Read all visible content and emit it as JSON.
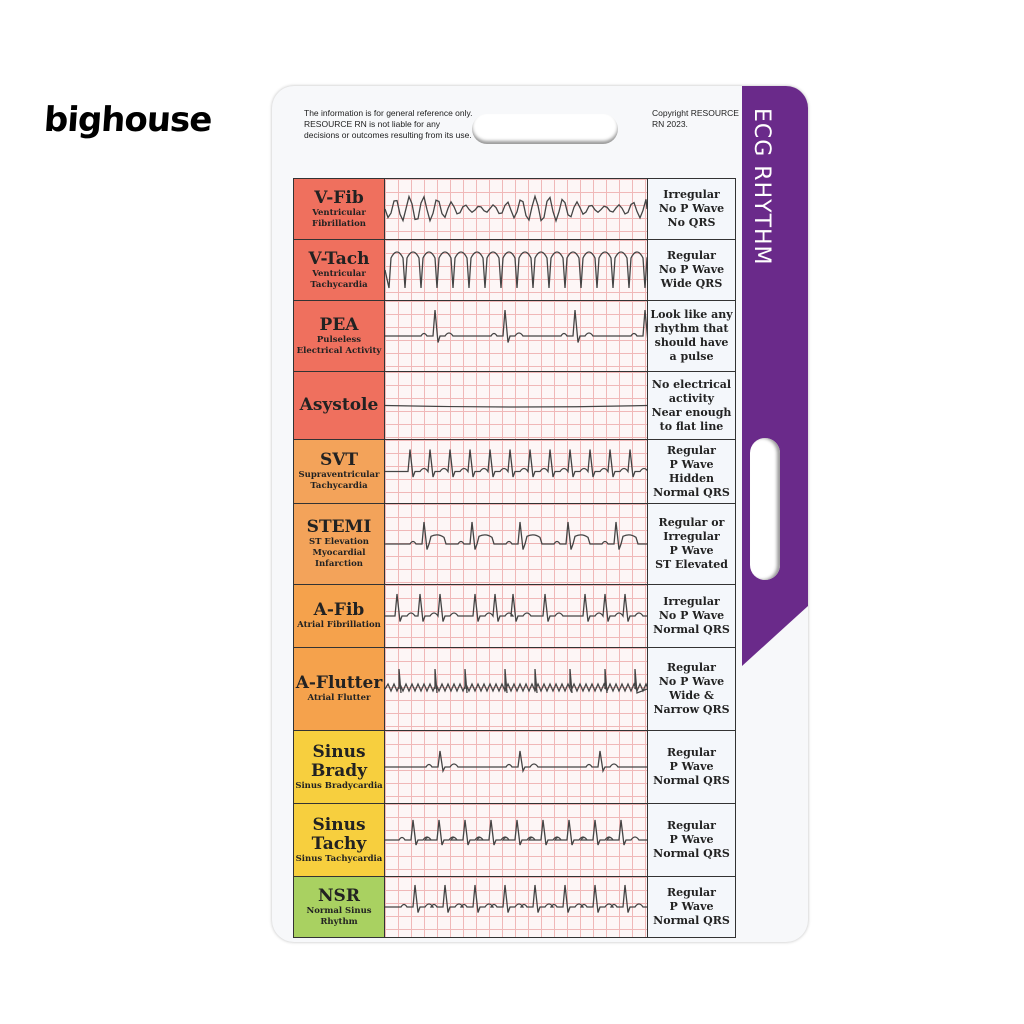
{
  "logo": "bighouse",
  "card": {
    "disclaimer": "The information is for general reference only. RESOURCE RN is not liable for any decisions or outcomes resulting from its use.",
    "copyright": "Copyright RESOURCE RN 2023.",
    "title": "ECG RHYTHM",
    "accent": "#6a2a8a",
    "rows": [
      {
        "name": "V-Fib",
        "sub": "Ventricular Fibrillation",
        "desc": [
          "Irregular",
          "No P Wave",
          "No QRS"
        ],
        "color": "#ef705e"
      },
      {
        "name": "V-Tach",
        "sub": "Ventricular Tachycardia",
        "desc": [
          "Regular",
          "No P Wave",
          "Wide QRS"
        ],
        "color": "#ef705e"
      },
      {
        "name": "PEA",
        "sub": "Pulseless Electrical Activity",
        "desc": [
          "Look like any",
          "rhythm that",
          "should have",
          "a pulse"
        ],
        "color": "#ef705e"
      },
      {
        "name": "Asystole",
        "sub": "",
        "desc": [
          "No electrical",
          "activity",
          "Near enough",
          "to flat line"
        ],
        "color": "#ef705e"
      },
      {
        "name": "SVT",
        "sub": "Supraventricular Tachycardia",
        "desc": [
          "Regular",
          "P Wave",
          "Hidden",
          "Normal QRS"
        ],
        "color": "#f3a35a"
      },
      {
        "name": "STEMI",
        "sub": "ST Elevation Myocardial Infarction",
        "desc": [
          "Regular or",
          "Irregular",
          "P Wave",
          "ST Elevated"
        ],
        "color": "#f3a35a"
      },
      {
        "name": "A-Fib",
        "sub": "Atrial Fibrillation",
        "desc": [
          "Irregular",
          "No P Wave",
          "Normal QRS"
        ],
        "color": "#f5a24c"
      },
      {
        "name": "A-Flutter",
        "sub": "Atrial Flutter",
        "desc": [
          "Regular",
          "No P Wave",
          "Wide &",
          "Narrow QRS"
        ],
        "color": "#f5a24c"
      },
      {
        "name": "Sinus Brady",
        "sub": "Sinus Bradycardia",
        "desc": [
          "Regular",
          "P Wave",
          "Normal QRS"
        ],
        "color": "#f7cf3e"
      },
      {
        "name": "Sinus Tachy",
        "sub": "Sinus Tachycardia",
        "desc": [
          "Regular",
          "P Wave",
          "Normal QRS"
        ],
        "color": "#f7cf3e"
      },
      {
        "name": "NSR",
        "sub": "Normal Sinus Rhythm",
        "desc": [
          "Regular",
          "P Wave",
          "Normal QRS"
        ],
        "color": "#a9d161"
      }
    ]
  }
}
